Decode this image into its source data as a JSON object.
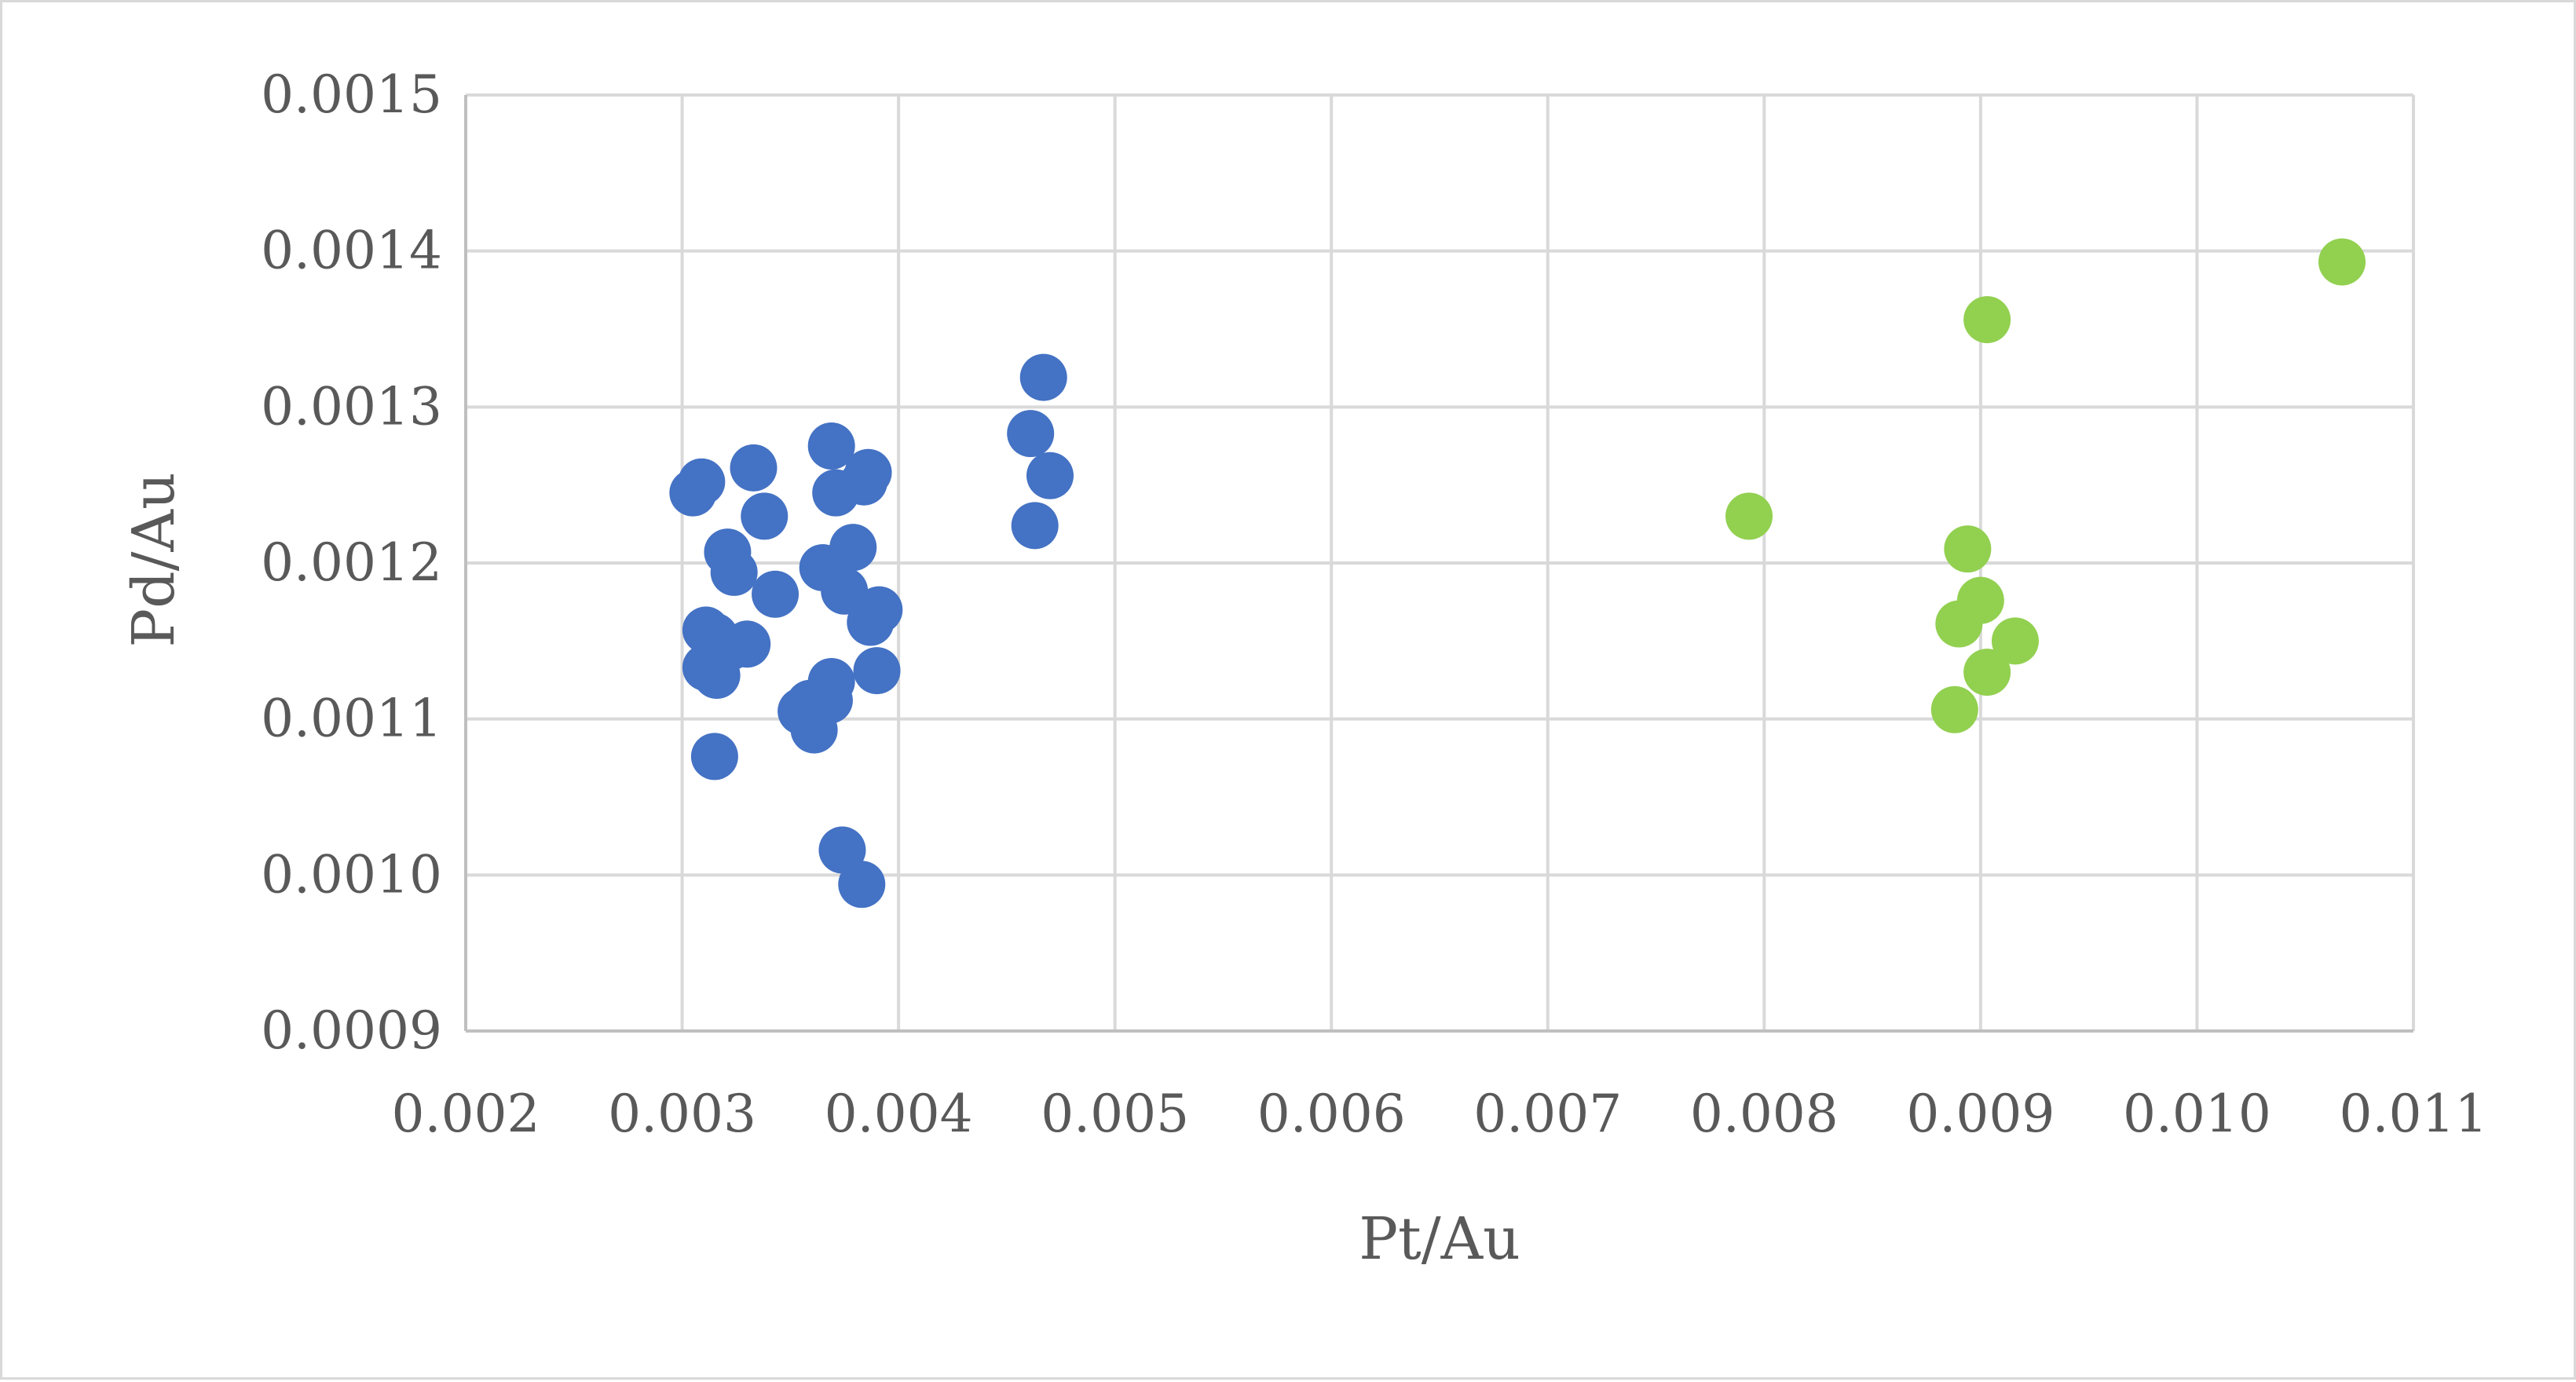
{
  "chart_data": {
    "type": "scatter",
    "title": "",
    "xlabel": "Pt/Au",
    "ylabel": "Pd/Au",
    "xlim": [
      0.002,
      0.011
    ],
    "ylim": [
      0.0009,
      0.0015
    ],
    "x_ticks": [
      "0.002",
      "0.003",
      "0.004",
      "0.005",
      "0.006",
      "0.007",
      "0.008",
      "0.009",
      "0.010",
      "0.011"
    ],
    "y_ticks": [
      "0.0009",
      "0.0010",
      "0.0011",
      "0.0012",
      "0.0013",
      "0.0014",
      "0.0015"
    ],
    "grid": true,
    "legend": "none",
    "series": [
      {
        "color": "#4472c4",
        "points": [
          [
            0.00305,
            0.001245
          ],
          [
            0.00309,
            0.001252
          ],
          [
            0.00333,
            0.001261
          ],
          [
            0.00338,
            0.00123
          ],
          [
            0.00321,
            0.001207
          ],
          [
            0.00324,
            0.001194
          ],
          [
            0.00343,
            0.00118
          ],
          [
            0.00311,
            0.001157
          ],
          [
            0.00315,
            0.001153
          ],
          [
            0.0033,
            0.001148
          ],
          [
            0.00322,
            0.001146
          ],
          [
            0.00311,
            0.001133
          ],
          [
            0.00316,
            0.001128
          ],
          [
            0.00315,
            0.001076
          ],
          [
            0.00369,
            0.001275
          ],
          [
            0.00371,
            0.001245
          ],
          [
            0.00386,
            0.001258
          ],
          [
            0.00384,
            0.001252
          ],
          [
            0.00379,
            0.00121
          ],
          [
            0.00365,
            0.001197
          ],
          [
            0.00375,
            0.001182
          ],
          [
            0.00391,
            0.00117
          ],
          [
            0.00387,
            0.001162
          ],
          [
            0.0039,
            0.001131
          ],
          [
            0.00369,
            0.001124
          ],
          [
            0.00368,
            0.001112
          ],
          [
            0.00355,
            0.001105
          ],
          [
            0.00359,
            0.00111
          ],
          [
            0.00361,
            0.001093
          ],
          [
            0.00374,
            0.001016
          ],
          [
            0.00383,
            0.000994
          ],
          [
            0.00467,
            0.001319
          ],
          [
            0.00461,
            0.001283
          ],
          [
            0.0047,
            0.001256
          ],
          [
            0.00463,
            0.001224
          ]
        ]
      },
      {
        "color": "#92d050",
        "points": [
          [
            0.00793,
            0.00123
          ],
          [
            0.00903,
            0.001356
          ],
          [
            0.01067,
            0.001393
          ],
          [
            0.00894,
            0.001209
          ],
          [
            0.009,
            0.001176
          ],
          [
            0.0089,
            0.001161
          ],
          [
            0.00916,
            0.00115
          ],
          [
            0.00903,
            0.00113
          ],
          [
            0.00888,
            0.001106
          ]
        ]
      }
    ]
  }
}
